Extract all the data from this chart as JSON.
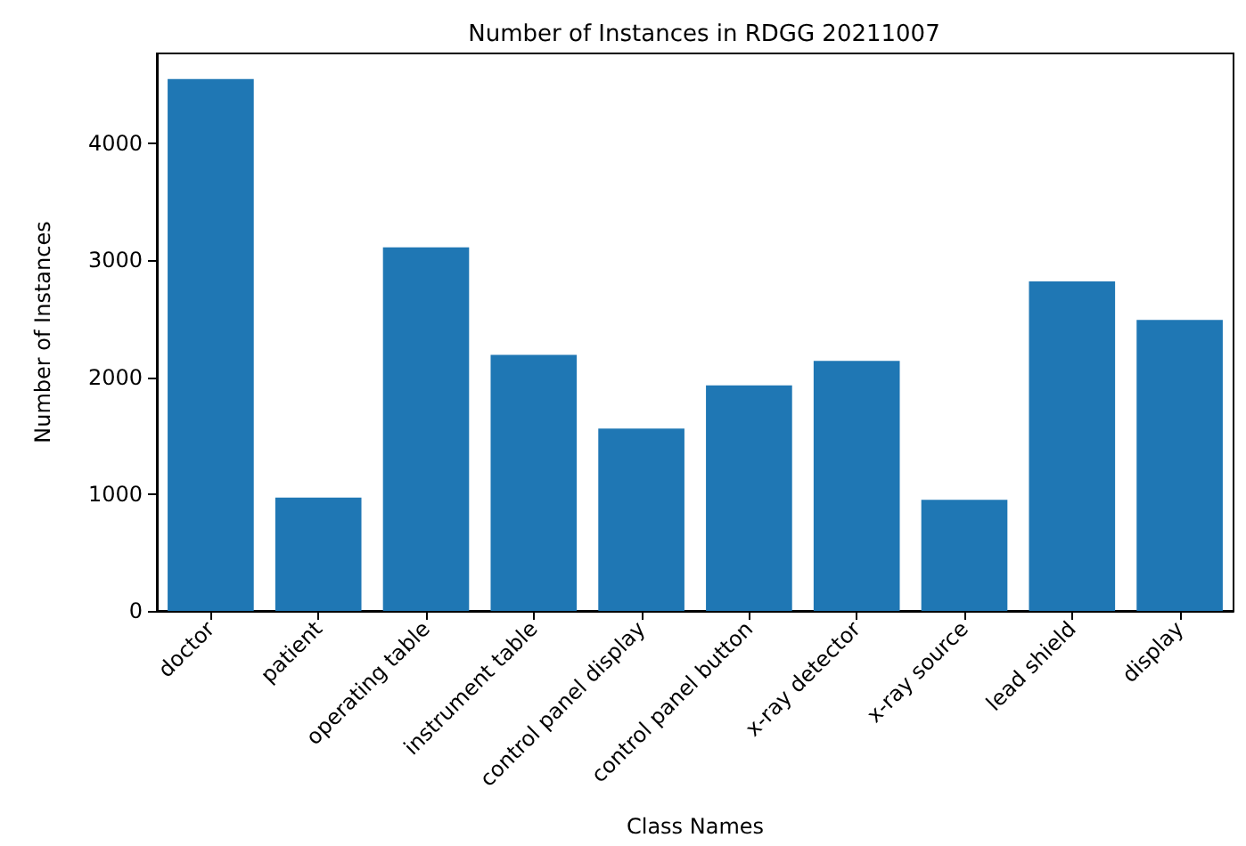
{
  "chart_data": {
    "type": "bar",
    "title": "Number of Instances in RDGG 20211007",
    "xlabel": "Class Names",
    "ylabel": "Number of Instances",
    "categories": [
      "doctor",
      "patient",
      "operating table",
      "instrument table",
      "control panel display",
      "control panel button",
      "x-ray detector",
      "x-ray source",
      "lead shield",
      "display"
    ],
    "values": [
      4550,
      970,
      3110,
      2190,
      1560,
      1930,
      2140,
      950,
      2820,
      2490
    ],
    "color": "#1f77b4",
    "ylim": [
      0,
      4770
    ],
    "yticks": [
      0,
      1000,
      2000,
      3000,
      4000
    ],
    "grid": false
  }
}
